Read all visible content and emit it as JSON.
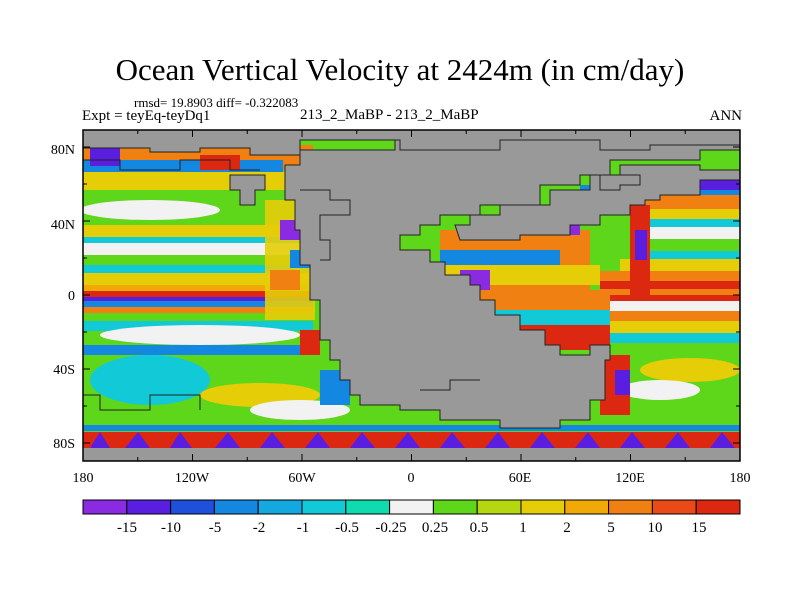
{
  "header": {
    "title": "Ocean Vertical Velocity at 2424m (in cm/day)",
    "stats": "rmsd= 19.8903 diff= -0.322083",
    "experiment": "Expt = teyEq-teyDq1",
    "case": "213_2_MaBP - 213_2_MaBP",
    "season": "ANN"
  },
  "axes": {
    "lat_labels": [
      "80N",
      "40N",
      "0",
      "40S",
      "80S"
    ],
    "lon_labels": [
      "180",
      "120W",
      "60W",
      "0",
      "60E",
      "120E",
      "180"
    ]
  },
  "colorbar": {
    "labels": [
      "-15",
      "-10",
      "-5",
      "-2",
      "-1",
      "-0.5",
      "-0.25",
      "0.25",
      "0.5",
      "1",
      "2",
      "5",
      "10",
      "15"
    ],
    "colors": [
      "#8a2be2",
      "#5a1ee0",
      "#1e50dc",
      "#1487e1",
      "#13a9e0",
      "#12c9d8",
      "#10dbb0",
      "#f2f2f2",
      "#5ed61a",
      "#b4d70f",
      "#e5cd08",
      "#f0a906",
      "#f08012",
      "#ea4a18",
      "#dc2811"
    ]
  },
  "colors": {
    "land": "#999999",
    "coast": "#222222"
  }
}
